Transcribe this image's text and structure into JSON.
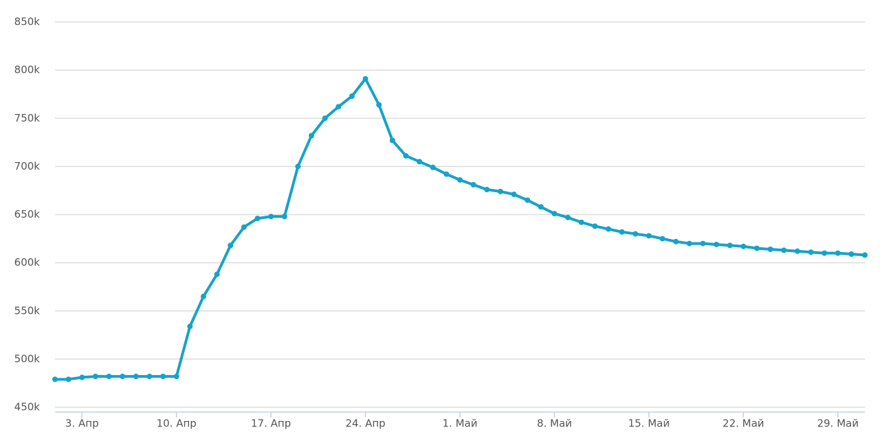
{
  "chart_data": {
    "type": "line",
    "color": "#17a2c9",
    "grid": true,
    "categories": [
      null,
      null,
      "3. Апр",
      null,
      null,
      null,
      null,
      null,
      null,
      "10. Апр",
      null,
      null,
      null,
      null,
      null,
      null,
      "17. Апр",
      null,
      null,
      null,
      null,
      null,
      null,
      "24. Апр",
      null,
      null,
      null,
      null,
      null,
      null,
      "1. Май",
      null,
      null,
      null,
      null,
      null,
      null,
      "8. Май",
      null,
      null,
      null,
      null,
      null,
      null,
      "15. Май",
      null,
      null,
      null,
      null,
      null,
      null,
      "22. Май",
      null,
      null,
      null,
      null,
      null,
      null,
      "29. Май",
      null,
      null
    ],
    "values": [
      479000,
      479000,
      481000,
      482000,
      482000,
      482000,
      482000,
      482000,
      482000,
      482000,
      534000,
      565000,
      588000,
      618000,
      637000,
      646000,
      648000,
      648000,
      700000,
      732000,
      750000,
      762000,
      773000,
      791000,
      764000,
      727000,
      711000,
      705000,
      699000,
      692000,
      686000,
      681000,
      676000,
      674000,
      671000,
      665000,
      658000,
      651000,
      647000,
      642000,
      638000,
      635000,
      632000,
      630000,
      628000,
      625000,
      622000,
      620000,
      620000,
      619000,
      618000,
      617000,
      615000,
      614000,
      613000,
      612000,
      611000,
      610000,
      610000,
      609000,
      608000
    ],
    "ylim": [
      450000,
      850000
    ],
    "yticks": [
      {
        "value": 450000,
        "label": "450k"
      },
      {
        "value": 500000,
        "label": "500k"
      },
      {
        "value": 550000,
        "label": "550k"
      },
      {
        "value": 600000,
        "label": "600k"
      },
      {
        "value": 650000,
        "label": "650k"
      },
      {
        "value": 700000,
        "label": "700k"
      },
      {
        "value": 750000,
        "label": "750k"
      },
      {
        "value": 800000,
        "label": "800k"
      },
      {
        "value": 850000,
        "label": "850k"
      }
    ]
  }
}
